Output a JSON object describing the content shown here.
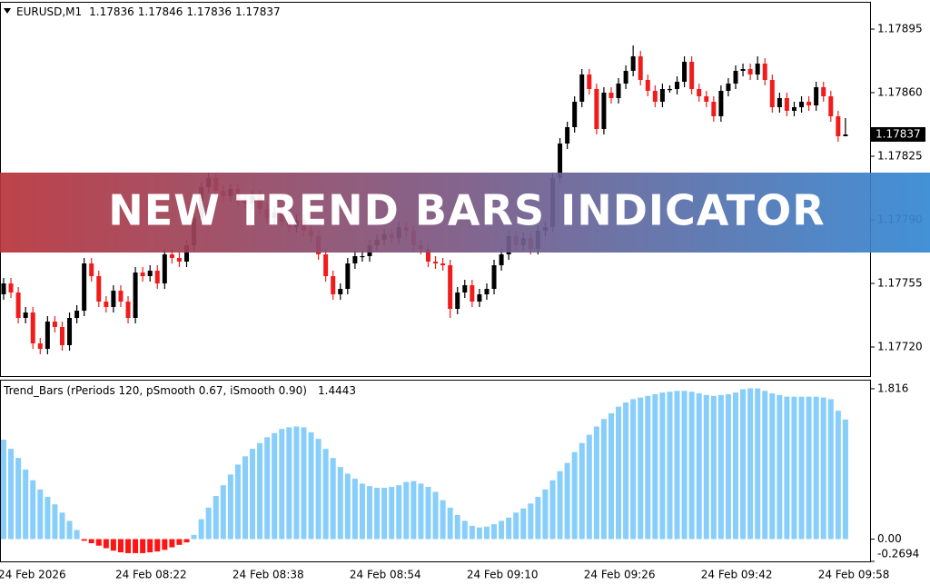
{
  "chart_data": [
    {
      "type": "candlestick",
      "title": "EURUSD,M1",
      "up_color": "#000000",
      "down_color": "#f21b1b",
      "ylim": [
        1.17704,
        1.1791
      ],
      "yticks": [
        1.17895,
        {
          "value": 1.1786,
          "label": "1.17860"
        },
        1.17825,
        {
          "value": 1.1779,
          "label": "1.17790"
        },
        1.17755,
        {
          "value": 1.1772,
          "label": "1.17720"
        }
      ],
      "grid": false,
      "open": [
        1.17749,
        1.17755,
        1.1775,
        1.17736,
        1.17739,
        1.17722,
        1.17719,
        1.17734,
        1.17731,
        1.17721,
        1.17736,
        1.1774,
        1.17766,
        1.17759,
        1.17745,
        1.17742,
        1.17751,
        1.17745,
        1.17736,
        1.17761,
        1.17759,
        1.17762,
        1.17755,
        1.17771,
        1.17769,
        1.17767,
        1.17776,
        1.17791,
        1.17808,
        1.17813,
        1.17806,
        1.17803,
        1.17807,
        1.17801,
        1.17799,
        1.17803,
        1.17796,
        1.17791,
        1.17794,
        1.17789,
        1.17786,
        1.1779,
        1.17784,
        1.17781,
        1.17771,
        1.17759,
        1.17749,
        1.17752,
        1.17766,
        1.1777,
        1.1777,
        1.17776,
        1.17779,
        1.17782,
        1.1778,
        1.17786,
        1.17784,
        1.17776,
        1.17774,
        1.17767,
        1.17766,
        1.17765,
        1.17741,
        1.1775,
        1.17754,
        1.17745,
        1.17749,
        1.17752,
        1.17765,
        1.17771,
        1.17781,
        1.17776,
        1.1778,
        1.17774,
        1.17784,
        1.17786,
        1.17813,
        1.17832,
        1.17841,
        1.17855,
        1.1787,
        1.17862,
        1.1784,
        1.1786,
        1.17857,
        1.17865,
        1.17872,
        1.1788,
        1.17867,
        1.17861,
        1.17855,
        1.17862,
        1.17862,
        1.17866,
        1.17877,
        1.17862,
        1.17858,
        1.17855,
        1.17847,
        1.17861,
        1.17865,
        1.17872,
        1.17873,
        1.1787,
        1.17876,
        1.17867,
        1.17852,
        1.17857,
        1.1785,
        1.17852,
        1.17855,
        1.17853,
        1.17863,
        1.17858,
        1.17847,
        1.17836
      ],
      "high": [
        1.17758,
        1.17758,
        1.17753,
        1.17742,
        1.17742,
        1.17725,
        1.17737,
        1.17737,
        1.17734,
        1.17739,
        1.17743,
        1.17769,
        1.17769,
        1.17762,
        1.17748,
        1.17754,
        1.17754,
        1.17748,
        1.17764,
        1.17764,
        1.17765,
        1.17765,
        1.17774,
        1.17774,
        1.17772,
        1.17779,
        1.17794,
        1.17811,
        1.17816,
        1.17816,
        1.17809,
        1.1781,
        1.1781,
        1.17804,
        1.17806,
        1.17806,
        1.17799,
        1.17797,
        1.17797,
        1.17792,
        1.17793,
        1.17793,
        1.17787,
        1.17784,
        1.17774,
        1.17762,
        1.17755,
        1.17769,
        1.17773,
        1.17773,
        1.17779,
        1.17782,
        1.17785,
        1.17785,
        1.17789,
        1.17789,
        1.17787,
        1.17779,
        1.17777,
        1.1777,
        1.17769,
        1.17768,
        1.17753,
        1.17757,
        1.17757,
        1.17752,
        1.17755,
        1.17768,
        1.17774,
        1.17784,
        1.17784,
        1.17783,
        1.17783,
        1.17787,
        1.17789,
        1.17816,
        1.17835,
        1.17844,
        1.17858,
        1.17873,
        1.17873,
        1.17865,
        1.17863,
        1.17863,
        1.17868,
        1.17875,
        1.17886,
        1.17883,
        1.1787,
        1.17864,
        1.17865,
        1.17864,
        1.17869,
        1.1788,
        1.1788,
        1.17865,
        1.17861,
        1.17858,
        1.17864,
        1.17868,
        1.17875,
        1.17876,
        1.17876,
        1.1788,
        1.17879,
        1.1787,
        1.1786,
        1.1786,
        1.17855,
        1.17858,
        1.17858,
        1.17866,
        1.17866,
        1.17861,
        1.1785,
        1.17846
      ],
      "low": [
        1.17746,
        1.17747,
        1.17733,
        1.17733,
        1.17719,
        1.17716,
        1.17716,
        1.17728,
        1.17718,
        1.17718,
        1.17733,
        1.17737,
        1.17756,
        1.17742,
        1.17739,
        1.17739,
        1.17742,
        1.17733,
        1.17733,
        1.17756,
        1.17756,
        1.17752,
        1.17752,
        1.17766,
        1.17764,
        1.17764,
        1.17773,
        1.17788,
        1.17805,
        1.17803,
        1.178,
        1.178,
        1.17798,
        1.17796,
        1.17796,
        1.17793,
        1.17788,
        1.17788,
        1.17786,
        1.17783,
        1.17783,
        1.17781,
        1.17778,
        1.17768,
        1.17756,
        1.17746,
        1.17746,
        1.17749,
        1.17763,
        1.17767,
        1.17767,
        1.17773,
        1.17776,
        1.17777,
        1.17777,
        1.17781,
        1.17773,
        1.17771,
        1.17764,
        1.17763,
        1.17762,
        1.17736,
        1.17738,
        1.17747,
        1.17742,
        1.17742,
        1.17746,
        1.17749,
        1.17762,
        1.17768,
        1.17773,
        1.17773,
        1.17771,
        1.17771,
        1.17781,
        1.17783,
        1.1781,
        1.17829,
        1.17838,
        1.17852,
        1.17859,
        1.17837,
        1.17837,
        1.17854,
        1.17854,
        1.17862,
        1.17869,
        1.17864,
        1.17858,
        1.17852,
        1.17852,
        1.1786,
        1.17859,
        1.17863,
        1.17859,
        1.17855,
        1.17852,
        1.17844,
        1.17844,
        1.17858,
        1.17862,
        1.17869,
        1.17867,
        1.17867,
        1.17864,
        1.17849,
        1.17849,
        1.17847,
        1.17847,
        1.17849,
        1.1785,
        1.1785,
        1.17855,
        1.17844,
        1.17833,
        1.17836
      ],
      "close": [
        1.17755,
        1.1775,
        1.17736,
        1.17739,
        1.17722,
        1.17719,
        1.17734,
        1.17731,
        1.17721,
        1.17736,
        1.1774,
        1.17766,
        1.17759,
        1.17745,
        1.17742,
        1.17751,
        1.17745,
        1.17736,
        1.17761,
        1.17759,
        1.17762,
        1.17755,
        1.17771,
        1.17769,
        1.17767,
        1.17776,
        1.17791,
        1.17808,
        1.17813,
        1.17806,
        1.17803,
        1.17807,
        1.17801,
        1.17799,
        1.17803,
        1.17796,
        1.17791,
        1.17794,
        1.17789,
        1.17786,
        1.1779,
        1.17784,
        1.17781,
        1.17771,
        1.17759,
        1.17749,
        1.17752,
        1.17766,
        1.1777,
        1.1777,
        1.17776,
        1.17779,
        1.17782,
        1.1778,
        1.17786,
        1.17784,
        1.17776,
        1.17774,
        1.17767,
        1.17766,
        1.17765,
        1.17741,
        1.1775,
        1.17754,
        1.17745,
        1.17749,
        1.17752,
        1.17765,
        1.17771,
        1.17781,
        1.17776,
        1.1778,
        1.17774,
        1.17784,
        1.17786,
        1.17813,
        1.17832,
        1.17841,
        1.17855,
        1.1787,
        1.17862,
        1.1784,
        1.1786,
        1.17857,
        1.17865,
        1.17872,
        1.1788,
        1.17867,
        1.17861,
        1.17855,
        1.17862,
        1.17862,
        1.17866,
        1.17877,
        1.17862,
        1.17858,
        1.17855,
        1.17847,
        1.17861,
        1.17865,
        1.17872,
        1.17873,
        1.1787,
        1.17876,
        1.17867,
        1.17852,
        1.17857,
        1.1785,
        1.17852,
        1.17855,
        1.17853,
        1.17863,
        1.17858,
        1.17847,
        1.17836,
        1.17837
      ]
    },
    {
      "type": "bar",
      "title": "Trend_Bars  (rPeriods 120, pSmooth 0.67, iSmooth 0.90)",
      "color": "#87cefa",
      "negative_color": "#ff1414",
      "ylim": [
        -0.2694,
        1.925
      ],
      "yticks": [
        1.816,
        {
          "value": 0,
          "label": "0.00"
        },
        -0.2694
      ],
      "grid": false,
      "categories": [
        "24 Feb 2026",
        null,
        null,
        null,
        null,
        null,
        null,
        null,
        null,
        null,
        null,
        null,
        null,
        null,
        null,
        null,
        "24 Feb 08:22",
        null,
        null,
        null,
        null,
        null,
        null,
        null,
        null,
        null,
        null,
        null,
        null,
        null,
        null,
        null,
        "24 Feb 08:38",
        null,
        null,
        null,
        null,
        null,
        null,
        null,
        null,
        null,
        null,
        null,
        null,
        null,
        null,
        null,
        "24 Feb 08:54",
        null,
        null,
        null,
        null,
        null,
        null,
        null,
        null,
        null,
        null,
        null,
        null,
        null,
        null,
        null,
        "24 Feb 09:10",
        null,
        null,
        null,
        null,
        null,
        null,
        null,
        null,
        null,
        null,
        null,
        null,
        null,
        null,
        null,
        "24 Feb 09:26",
        null,
        null,
        null,
        null,
        null,
        null,
        null,
        null,
        null,
        null,
        null,
        null,
        null,
        null,
        null,
        "24 Feb 09:42",
        null,
        null,
        null,
        null,
        null,
        null,
        null,
        null,
        null,
        null,
        null,
        null,
        null,
        null,
        null,
        "24 Feb 09:58",
        null,
        null,
        null
      ],
      "values": [
        1.2,
        1.09,
        0.98,
        0.84,
        0.71,
        0.6,
        0.51,
        0.42,
        0.32,
        0.22,
        0.11,
        -0.02,
        -0.05,
        -0.08,
        -0.11,
        -0.14,
        -0.16,
        -0.17,
        -0.17,
        -0.17,
        -0.16,
        -0.15,
        -0.13,
        -0.1,
        -0.07,
        -0.04,
        0.05,
        0.24,
        0.38,
        0.52,
        0.65,
        0.78,
        0.9,
        1.0,
        1.09,
        1.16,
        1.23,
        1.28,
        1.33,
        1.35,
        1.36,
        1.35,
        1.29,
        1.21,
        1.09,
        0.98,
        0.87,
        0.79,
        0.73,
        0.67,
        0.64,
        0.62,
        0.62,
        0.63,
        0.65,
        0.69,
        0.7,
        0.67,
        0.63,
        0.57,
        0.47,
        0.38,
        0.29,
        0.22,
        0.16,
        0.14,
        0.15,
        0.18,
        0.22,
        0.26,
        0.32,
        0.37,
        0.43,
        0.51,
        0.6,
        0.71,
        0.82,
        0.92,
        1.05,
        1.16,
        1.26,
        1.36,
        1.45,
        1.52,
        1.6,
        1.65,
        1.69,
        1.71,
        1.73,
        1.75,
        1.77,
        1.78,
        1.79,
        1.79,
        1.78,
        1.76,
        1.74,
        1.73,
        1.74,
        1.75,
        1.77,
        1.81,
        1.82,
        1.82,
        1.79,
        1.76,
        1.74,
        1.72,
        1.72,
        1.72,
        1.72,
        1.72,
        1.71,
        1.69,
        1.55,
        1.4443
      ]
    }
  ],
  "banner": "NEW TREND BARS INDICATOR"
}
